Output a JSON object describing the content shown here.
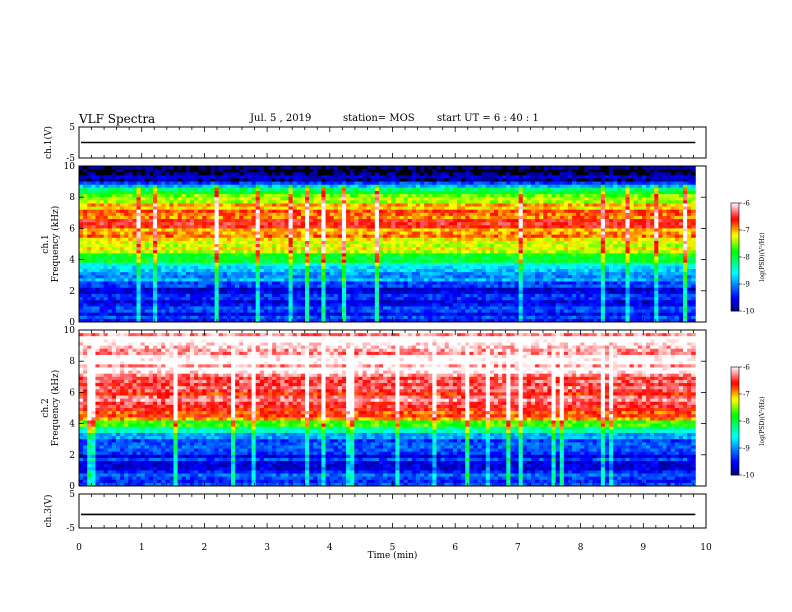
{
  "header": {
    "title": "VLF Spectra",
    "date": "Jul. 5 , 2019",
    "station": "station= MOS",
    "start": "start UT = 6 : 40 : 1"
  },
  "chart_data": [
    {
      "type": "line",
      "panel": "ch1-waveform",
      "ylabel": "ch.1(V)",
      "ylim": [
        -5,
        5
      ],
      "y_ticks": [
        "5",
        "-5"
      ],
      "series": [
        {
          "values": [
            0,
            0
          ]
        }
      ],
      "note": "flat trace near 0 V"
    },
    {
      "type": "heatmap",
      "panel": "ch1-spectrogram",
      "ylabel": "ch.1",
      "ylabel2": "Frequency (kHz)",
      "ylim": [
        0,
        10
      ],
      "y_ticks": [
        "0",
        "2",
        "4",
        "6",
        "8",
        "10"
      ],
      "colorbar": {
        "label": "log(PSD)(V²/Hz)",
        "ticks": [
          "-6",
          "-7",
          "-8",
          "-9",
          "-10"
        ],
        "range": [
          -10,
          -6
        ]
      },
      "band_profile": [
        {
          "f": 0.0,
          "v": -9.2
        },
        {
          "f": 1.0,
          "v": -9.5
        },
        {
          "f": 2.0,
          "v": -9.6
        },
        {
          "f": 3.0,
          "v": -9.0
        },
        {
          "f": 4.0,
          "v": -8.0
        },
        {
          "f": 5.0,
          "v": -7.2
        },
        {
          "f": 6.0,
          "v": -6.8
        },
        {
          "f": 7.0,
          "v": -6.7
        },
        {
          "f": 8.0,
          "v": -7.6
        },
        {
          "f": 8.8,
          "v": -8.8
        },
        {
          "f": 9.0,
          "v": -10.0
        },
        {
          "f": 10.0,
          "v": -10.0
        }
      ]
    },
    {
      "type": "heatmap",
      "panel": "ch2-spectrogram",
      "ylabel": "ch.2",
      "ylabel2": "Frequency (kHz)",
      "ylim": [
        0,
        10
      ],
      "y_ticks": [
        "0",
        "2",
        "4",
        "6",
        "8",
        "10"
      ],
      "colorbar": {
        "label": "log(PSD)(V²/Hz)",
        "ticks": [
          "-6",
          "-7",
          "-8",
          "-9",
          "-10"
        ],
        "range": [
          -10,
          -6
        ]
      },
      "band_profile": [
        {
          "f": 0.0,
          "v": -9.2
        },
        {
          "f": 1.0,
          "v": -9.5
        },
        {
          "f": 2.0,
          "v": -9.5
        },
        {
          "f": 3.0,
          "v": -9.2
        },
        {
          "f": 3.8,
          "v": -8.0
        },
        {
          "f": 4.5,
          "v": -6.9
        },
        {
          "f": 5.5,
          "v": -6.5
        },
        {
          "f": 7.0,
          "v": -6.2
        },
        {
          "f": 10.0,
          "v": -6.0
        }
      ]
    },
    {
      "type": "line",
      "panel": "ch3-waveform",
      "ylabel": "ch.3(V)",
      "ylim": [
        -5,
        5
      ],
      "y_ticks": [
        "5",
        "-5"
      ],
      "series": [
        {
          "values": [
            -1,
            -1
          ]
        }
      ],
      "note": "flat trace near -1 V"
    }
  ],
  "x_axis": {
    "label": "Time (min)",
    "range": [
      0,
      10
    ],
    "ticks": [
      "0",
      "1",
      "2",
      "3",
      "4",
      "5",
      "6",
      "7",
      "8",
      "9",
      "10"
    ],
    "data_end": 9.83
  },
  "colors": {
    "background": "#ffffff",
    "axis": "#000000",
    "no_data": "#000000"
  }
}
